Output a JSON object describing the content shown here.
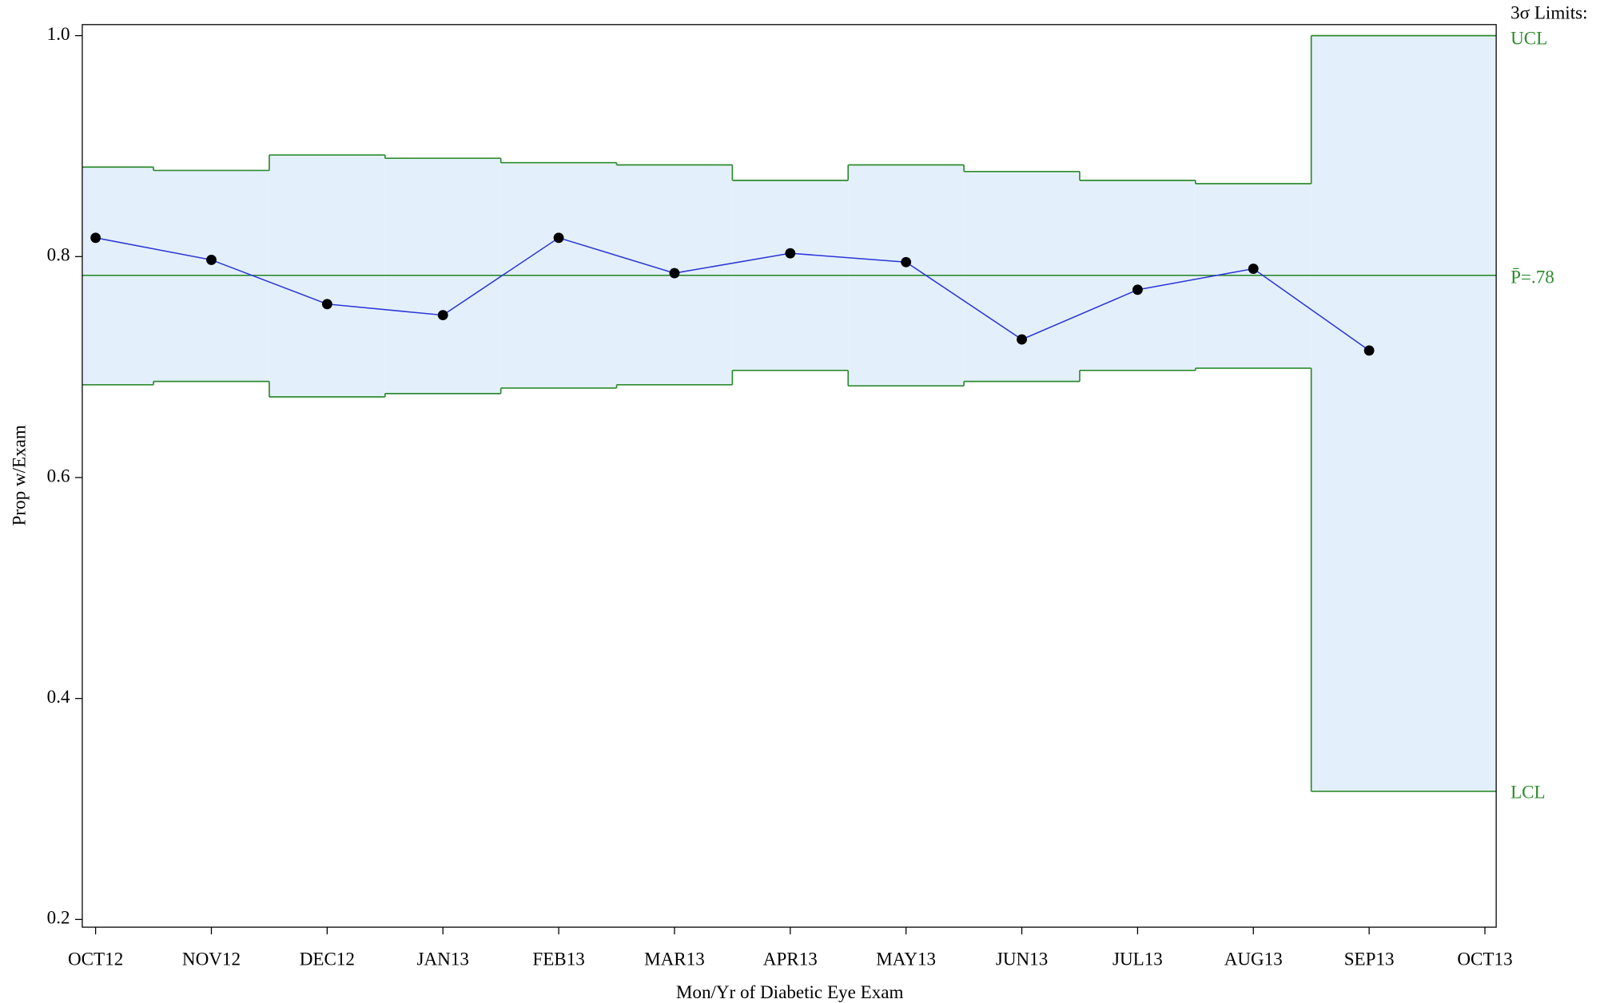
{
  "chart_data": {
    "type": "line",
    "y_label": "Prop w/Exam",
    "x_label": "Mon/Yr of Diabetic Eye Exam",
    "categories": [
      "OCT12",
      "NOV12",
      "DEC12",
      "JAN13",
      "FEB13",
      "MAR13",
      "APR13",
      "MAY13",
      "JUN13",
      "JUL13",
      "AUG13",
      "SEP13",
      "OCT13"
    ],
    "values": [
      0.817,
      0.797,
      0.757,
      0.747,
      0.817,
      0.785,
      0.803,
      0.795,
      0.725,
      0.77,
      0.789,
      0.715,
      null
    ],
    "ucl": [
      0.881,
      0.878,
      0.892,
      0.889,
      0.885,
      0.883,
      0.869,
      0.883,
      0.877,
      0.869,
      0.866,
      1.0,
      null
    ],
    "lcl": [
      0.684,
      0.687,
      0.673,
      0.676,
      0.681,
      0.684,
      0.697,
      0.683,
      0.687,
      0.697,
      0.699,
      0.316,
      null
    ],
    "center": 0.783,
    "limits_label": "3σ Limits:",
    "ucl_label": "UCL",
    "center_label": "P̄=.78",
    "lcl_label": "LCL",
    "line_color": "#2b35d6",
    "limit_color": "#2e8b2e",
    "band_color": "#e3f0fc",
    "ylim": [
      0.193,
      1.01
    ],
    "yticks": [
      0.2,
      0.4,
      0.6,
      0.8,
      {
        "value": 1.0,
        "label": "1.0"
      }
    ]
  }
}
